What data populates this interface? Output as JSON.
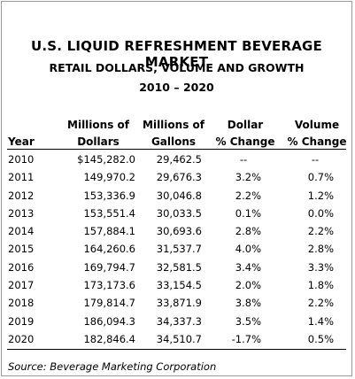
{
  "title": "U.S. LIQUID REFRESHMENT BEVERAGE MARKET",
  "subtitle": "RETAIL DOLLARS, VOLUME AND GROWTH",
  "period": "2010 – 2020",
  "columns": {
    "year": "Year",
    "dollars_1": "Millions of",
    "dollars_2": "Dollars",
    "gallons_1": "Millions of",
    "gallons_2": "Gallons",
    "dollar_pct_1": "Dollar",
    "dollar_pct_2": "% Change",
    "volume_pct_1": "Volume",
    "volume_pct_2": "% Change"
  },
  "rows": [
    {
      "year": "2010",
      "dollars": "$145,282.0",
      "gallons": "29,462.5",
      "dollar_pct": "--",
      "volume_pct": "--"
    },
    {
      "year": "2011",
      "dollars": "149,970.2",
      "gallons": "29,676.3",
      "dollar_pct": "3.2%",
      "volume_pct": "0.7%"
    },
    {
      "year": "2012",
      "dollars": "153,336.9",
      "gallons": "30,046.8",
      "dollar_pct": "2.2%",
      "volume_pct": "1.2%"
    },
    {
      "year": "2013",
      "dollars": "153,551.4",
      "gallons": "30,033.5",
      "dollar_pct": "0.1%",
      "volume_pct": "0.0%"
    },
    {
      "year": "2014",
      "dollars": "157,884.1",
      "gallons": "30,693.6",
      "dollar_pct": "2.8%",
      "volume_pct": "2.2%"
    },
    {
      "year": "2015",
      "dollars": "164,260.6",
      "gallons": "31,537.7",
      "dollar_pct": "4.0%",
      "volume_pct": "2.8%"
    },
    {
      "year": "2016",
      "dollars": "169,794.7",
      "gallons": "32,581.5",
      "dollar_pct": "3.4%",
      "volume_pct": "3.3%"
    },
    {
      "year": "2017",
      "dollars": "173,173.6",
      "gallons": "33,154.5",
      "dollar_pct": "2.0%",
      "volume_pct": "1.8%"
    },
    {
      "year": "2018",
      "dollars": "179,814.7",
      "gallons": "33,871.9",
      "dollar_pct": "3.8%",
      "volume_pct": "2.2%"
    },
    {
      "year": "2019",
      "dollars": "186,094.3",
      "gallons": "34,337.3",
      "dollar_pct": "3.5%",
      "volume_pct": "1.4%"
    },
    {
      "year": "2020",
      "dollars": "182,846.4",
      "gallons": "34,510.7",
      "dollar_pct": "-1.7%",
      "volume_pct": "0.5%"
    }
  ],
  "source": "Source:  Beverage Marketing Corporation"
}
